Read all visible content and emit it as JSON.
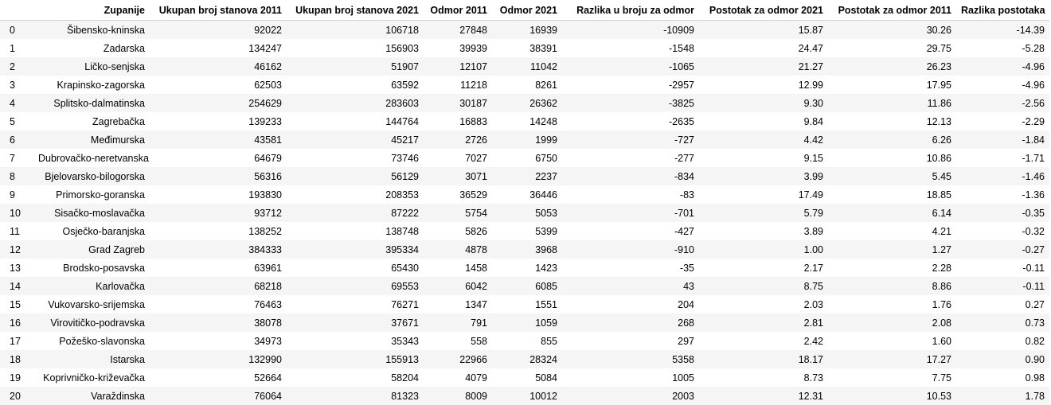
{
  "table": {
    "columns": [
      "Zupanije",
      "Ukupan broj stanova 2011",
      "Ukupan broj stanova 2021",
      "Odmor 2011",
      "Odmor 2021",
      "Razlika u broju za odmor",
      "Postotak za odmor 2021",
      "Postotak za odmor 2011",
      "Razlika postotaka"
    ],
    "rows": [
      [
        "0",
        "Šibensko-kninska",
        "92022",
        "106718",
        "27848",
        "16939",
        "-10909",
        "15.87",
        "30.26",
        "-14.39"
      ],
      [
        "1",
        "Zadarska",
        "134247",
        "156903",
        "39939",
        "38391",
        "-1548",
        "24.47",
        "29.75",
        "-5.28"
      ],
      [
        "2",
        "Ličko-senjska",
        "46162",
        "51907",
        "12107",
        "11042",
        "-1065",
        "21.27",
        "26.23",
        "-4.96"
      ],
      [
        "3",
        "Krapinsko-zagorska",
        "62503",
        "63592",
        "11218",
        "8261",
        "-2957",
        "12.99",
        "17.95",
        "-4.96"
      ],
      [
        "4",
        "Splitsko-dalmatinska",
        "254629",
        "283603",
        "30187",
        "26362",
        "-3825",
        "9.30",
        "11.86",
        "-2.56"
      ],
      [
        "5",
        "Zagrebačka",
        "139233",
        "144764",
        "16883",
        "14248",
        "-2635",
        "9.84",
        "12.13",
        "-2.29"
      ],
      [
        "6",
        "Međimurska",
        "43581",
        "45217",
        "2726",
        "1999",
        "-727",
        "4.42",
        "6.26",
        "-1.84"
      ],
      [
        "7",
        "Dubrovačko-neretvanska",
        "64679",
        "73746",
        "7027",
        "6750",
        "-277",
        "9.15",
        "10.86",
        "-1.71"
      ],
      [
        "8",
        "Bjelovarsko-bilogorska",
        "56316",
        "56129",
        "3071",
        "2237",
        "-834",
        "3.99",
        "5.45",
        "-1.46"
      ],
      [
        "9",
        "Primorsko-goranska",
        "193830",
        "208353",
        "36529",
        "36446",
        "-83",
        "17.49",
        "18.85",
        "-1.36"
      ],
      [
        "10",
        "Sisačko-moslavačka",
        "93712",
        "87222",
        "5754",
        "5053",
        "-701",
        "5.79",
        "6.14",
        "-0.35"
      ],
      [
        "11",
        "Osječko-baranjska",
        "138252",
        "138748",
        "5826",
        "5399",
        "-427",
        "3.89",
        "4.21",
        "-0.32"
      ],
      [
        "12",
        "Grad Zagreb",
        "384333",
        "395334",
        "4878",
        "3968",
        "-910",
        "1.00",
        "1.27",
        "-0.27"
      ],
      [
        "13",
        "Brodsko-posavska",
        "63961",
        "65430",
        "1458",
        "1423",
        "-35",
        "2.17",
        "2.28",
        "-0.11"
      ],
      [
        "14",
        "Karlovačka",
        "68218",
        "69553",
        "6042",
        "6085",
        "43",
        "8.75",
        "8.86",
        "-0.11"
      ],
      [
        "15",
        "Vukovarsko-srijemska",
        "76463",
        "76271",
        "1347",
        "1551",
        "204",
        "2.03",
        "1.76",
        "0.27"
      ],
      [
        "16",
        "Virovitičko-podravska",
        "38078",
        "37671",
        "791",
        "1059",
        "268",
        "2.81",
        "2.08",
        "0.73"
      ],
      [
        "17",
        "Požeško-slavonska",
        "34973",
        "35343",
        "558",
        "855",
        "297",
        "2.42",
        "1.60",
        "0.82"
      ],
      [
        "18",
        "Istarska",
        "132990",
        "155913",
        "22966",
        "28324",
        "5358",
        "18.17",
        "17.27",
        "0.90"
      ],
      [
        "19",
        "Koprivničko-križevačka",
        "52664",
        "58204",
        "4079",
        "5084",
        "1005",
        "8.73",
        "7.75",
        "0.98"
      ],
      [
        "20",
        "Varaždinska",
        "76064",
        "81323",
        "8009",
        "10012",
        "2003",
        "12.31",
        "10.53",
        "1.78"
      ]
    ]
  }
}
